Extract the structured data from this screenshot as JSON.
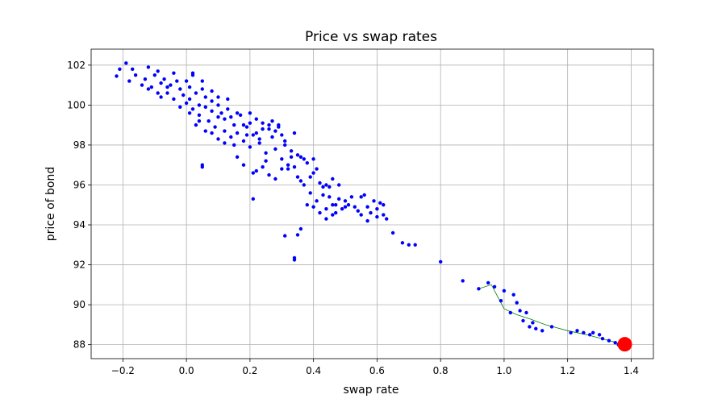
{
  "chart_data": {
    "type": "scatter",
    "title": "Price vs swap rates",
    "xlabel": "swap rate",
    "ylabel": "price of bond",
    "xlim": [
      -0.3,
      1.47
    ],
    "ylim": [
      87.3,
      102.8
    ],
    "xticks": [
      -0.2,
      0.0,
      0.2,
      0.4,
      0.6,
      0.8,
      1.0,
      1.2,
      1.4
    ],
    "xtick_labels": [
      "−0.2",
      "0.0",
      "0.2",
      "0.4",
      "0.6",
      "0.8",
      "1.0",
      "1.2",
      "1.4"
    ],
    "yticks": [
      88,
      90,
      92,
      94,
      96,
      98,
      100,
      102
    ],
    "ytick_labels": [
      "88",
      "90",
      "92",
      "94",
      "96",
      "98",
      "100",
      "102"
    ],
    "grid": true,
    "colors": {
      "points": "#0000ff",
      "line": "#008000",
      "highlight": "#ff0000"
    },
    "series": [
      {
        "kind": "scatter",
        "points": [
          [
            -0.22,
            101.45
          ],
          [
            -0.21,
            101.8
          ],
          [
            -0.19,
            102.1
          ],
          [
            -0.17,
            101.8
          ],
          [
            -0.18,
            101.2
          ],
          [
            -0.16,
            101.5
          ],
          [
            -0.14,
            101.0
          ],
          [
            -0.13,
            101.3
          ],
          [
            -0.12,
            100.8
          ],
          [
            -0.11,
            100.9
          ],
          [
            -0.1,
            101.5
          ],
          [
            -0.09,
            100.6
          ],
          [
            -0.08,
            101.1
          ],
          [
            -0.07,
            101.3
          ],
          [
            -0.06,
            100.9
          ],
          [
            -0.05,
            101.0
          ],
          [
            -0.04,
            101.6
          ],
          [
            -0.03,
            101.2
          ],
          [
            -0.02,
            100.8
          ],
          [
            -0.01,
            100.5
          ],
          [
            0.0,
            101.2
          ],
          [
            0.0,
            100.1
          ],
          [
            0.01,
            100.9
          ],
          [
            0.01,
            100.3
          ],
          [
            0.02,
            99.8
          ],
          [
            0.02,
            101.5
          ],
          [
            0.03,
            100.6
          ],
          [
            0.04,
            100.0
          ],
          [
            0.04,
            99.5
          ],
          [
            0.05,
            100.8
          ],
          [
            0.06,
            99.9
          ],
          [
            0.06,
            100.4
          ],
          [
            0.07,
            99.2
          ],
          [
            0.08,
            99.7
          ],
          [
            0.08,
            100.2
          ],
          [
            0.09,
            98.9
          ],
          [
            0.1,
            99.4
          ],
          [
            0.1,
            100.0
          ],
          [
            0.11,
            99.6
          ],
          [
            0.12,
            98.7
          ],
          [
            0.12,
            99.3
          ],
          [
            0.13,
            100.3
          ],
          [
            0.14,
            98.4
          ],
          [
            0.15,
            99.0
          ],
          [
            0.16,
            98.6
          ],
          [
            0.17,
            99.5
          ],
          [
            0.18,
            98.2
          ],
          [
            0.19,
            98.9
          ],
          [
            0.2,
            99.1
          ],
          [
            0.2,
            97.9
          ],
          [
            0.21,
            98.5
          ],
          [
            0.22,
            99.3
          ],
          [
            0.23,
            98.1
          ],
          [
            0.24,
            98.8
          ],
          [
            0.25,
            97.6
          ],
          [
            0.26,
            99.0
          ],
          [
            0.27,
            98.4
          ],
          [
            0.28,
            97.8
          ],
          [
            0.29,
            98.9
          ],
          [
            0.3,
            97.3
          ],
          [
            0.31,
            98.2
          ],
          [
            0.32,
            96.8
          ],
          [
            0.33,
            97.7
          ],
          [
            0.34,
            98.6
          ],
          [
            0.35,
            96.4
          ],
          [
            0.36,
            97.4
          ],
          [
            0.37,
            96.0
          ],
          [
            0.38,
            97.1
          ],
          [
            0.39,
            95.6
          ],
          [
            0.4,
            96.6
          ],
          [
            0.41,
            95.2
          ],
          [
            0.42,
            96.1
          ],
          [
            0.43,
            95.5
          ],
          [
            0.44,
            94.8
          ],
          [
            0.45,
            95.9
          ],
          [
            0.46,
            95.0
          ],
          [
            0.47,
            94.6
          ],
          [
            0.48,
            95.3
          ],
          [
            0.5,
            94.9
          ],
          [
            0.52,
            95.4
          ],
          [
            0.54,
            94.7
          ],
          [
            0.56,
            95.5
          ],
          [
            0.58,
            94.6
          ],
          [
            0.59,
            95.2
          ],
          [
            0.6,
            94.8
          ],
          [
            0.61,
            95.1
          ],
          [
            0.62,
            94.5
          ],
          [
            0.63,
            94.3
          ],
          [
            0.65,
            93.6
          ],
          [
            0.68,
            93.1
          ],
          [
            0.7,
            93.0
          ],
          [
            0.72,
            93.0
          ],
          [
            0.8,
            92.15
          ],
          [
            0.87,
            91.2
          ],
          [
            0.92,
            90.8
          ],
          [
            0.95,
            91.1
          ],
          [
            0.97,
            90.9
          ],
          [
            0.99,
            90.2
          ],
          [
            1.0,
            90.7
          ],
          [
            1.02,
            89.6
          ],
          [
            1.03,
            90.5
          ],
          [
            1.04,
            90.1
          ],
          [
            1.05,
            89.7
          ],
          [
            1.06,
            89.2
          ],
          [
            1.07,
            89.6
          ],
          [
            1.08,
            88.9
          ],
          [
            1.09,
            89.1
          ],
          [
            1.1,
            88.8
          ],
          [
            1.12,
            88.7
          ],
          [
            1.15,
            88.9
          ],
          [
            1.21,
            88.6
          ],
          [
            1.23,
            88.7
          ],
          [
            1.25,
            88.6
          ],
          [
            1.27,
            88.5
          ],
          [
            1.28,
            88.6
          ],
          [
            1.3,
            88.5
          ],
          [
            1.31,
            88.3
          ],
          [
            1.33,
            88.2
          ],
          [
            1.35,
            88.1
          ],
          [
            1.36,
            88.0
          ],
          [
            0.05,
            97.0
          ],
          [
            0.05,
            96.9
          ],
          [
            0.21,
            95.3
          ],
          [
            0.31,
            93.45
          ],
          [
            0.34,
            92.35
          ],
          [
            0.34,
            92.25
          ],
          [
            0.35,
            93.5
          ],
          [
            0.36,
            93.8
          ],
          [
            0.21,
            96.6
          ],
          [
            0.22,
            96.7
          ],
          [
            0.28,
            96.3
          ],
          [
            0.3,
            96.8
          ],
          [
            0.25,
            97.2
          ],
          [
            0.15,
            98.0
          ],
          [
            0.12,
            98.1
          ],
          [
            0.16,
            97.4
          ],
          [
            0.18,
            97.0
          ],
          [
            0.24,
            96.9
          ],
          [
            0.26,
            96.5
          ],
          [
            0.34,
            96.9
          ],
          [
            0.35,
            97.5
          ],
          [
            0.4,
            97.3
          ],
          [
            0.44,
            96.0
          ],
          [
            0.46,
            96.3
          ],
          [
            0.48,
            96.0
          ],
          [
            0.5,
            95.2
          ],
          [
            0.55,
            95.4
          ],
          [
            0.57,
            94.2
          ],
          [
            0.6,
            94.4
          ],
          [
            0.62,
            95.0
          ],
          [
            0.4,
            94.9
          ],
          [
            0.42,
            94.6
          ],
          [
            0.44,
            94.3
          ],
          [
            0.46,
            94.5
          ],
          [
            0.38,
            95.0
          ],
          [
            0.36,
            96.2
          ],
          [
            0.32,
            97.0
          ],
          [
            0.3,
            98.5
          ],
          [
            0.29,
            99.0
          ],
          [
            0.27,
            99.2
          ],
          [
            0.24,
            99.1
          ],
          [
            0.22,
            98.6
          ],
          [
            0.2,
            99.6
          ],
          [
            0.18,
            99.0
          ],
          [
            0.14,
            99.4
          ],
          [
            0.1,
            98.3
          ],
          [
            0.08,
            98.6
          ],
          [
            0.06,
            98.7
          ],
          [
            0.04,
            99.2
          ],
          [
            0.03,
            99.0
          ],
          [
            0.01,
            99.6
          ],
          [
            -0.02,
            99.9
          ],
          [
            -0.04,
            100.3
          ],
          [
            -0.06,
            100.6
          ],
          [
            -0.08,
            100.4
          ],
          [
            -0.09,
            101.7
          ],
          [
            -0.12,
            101.9
          ],
          [
            0.02,
            101.6
          ],
          [
            0.05,
            101.2
          ],
          [
            0.08,
            100.7
          ],
          [
            0.1,
            100.4
          ],
          [
            0.13,
            99.8
          ],
          [
            0.16,
            99.6
          ],
          [
            0.19,
            98.5
          ],
          [
            0.23,
            98.3
          ],
          [
            0.26,
            98.8
          ],
          [
            0.28,
            98.7
          ],
          [
            0.31,
            98.0
          ],
          [
            0.33,
            97.4
          ],
          [
            0.37,
            97.3
          ],
          [
            0.39,
            96.4
          ],
          [
            0.41,
            96.8
          ],
          [
            0.43,
            95.9
          ],
          [
            0.45,
            95.4
          ],
          [
            0.47,
            95.0
          ],
          [
            0.49,
            94.8
          ],
          [
            0.51,
            95.0
          ],
          [
            0.53,
            94.9
          ],
          [
            0.55,
            94.5
          ],
          [
            0.57,
            94.9
          ]
        ]
      },
      {
        "kind": "line",
        "points": [
          [
            0.92,
            90.8
          ],
          [
            0.96,
            91.0
          ],
          [
            0.98,
            90.4
          ],
          [
            1.0,
            89.8
          ],
          [
            1.04,
            89.5
          ],
          [
            1.08,
            89.3
          ],
          [
            1.13,
            89.0
          ],
          [
            1.2,
            88.7
          ],
          [
            1.26,
            88.5
          ],
          [
            1.32,
            88.25
          ],
          [
            1.38,
            88.0
          ]
        ]
      }
    ],
    "highlight": {
      "x": 1.38,
      "y": 88.02
    }
  }
}
